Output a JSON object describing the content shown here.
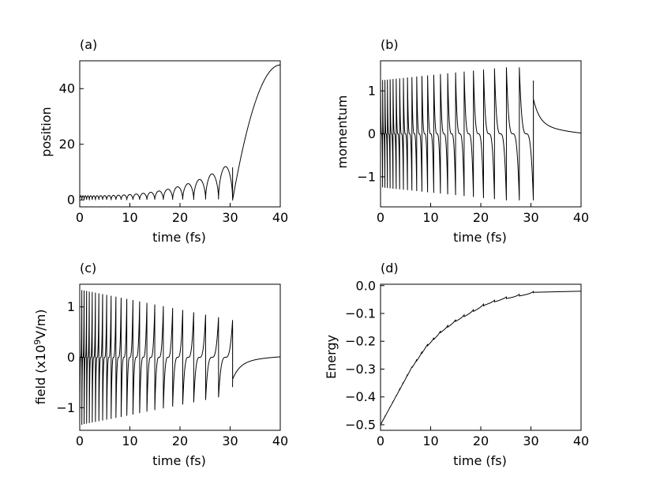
{
  "figure": {
    "background": "#ffffff",
    "line_color": "#000000"
  },
  "chart_data": [
    {
      "id": "a",
      "type": "line",
      "panel_label": "(a)",
      "xlabel": "time (fs)",
      "ylabel": "position",
      "xlim": [
        0,
        40
      ],
      "ylim": [
        -2.5,
        50
      ],
      "xticks": [
        0,
        10,
        20,
        30,
        40
      ],
      "xtick_labels": [
        "0",
        "10",
        "20",
        "30",
        "40"
      ],
      "yticks": [
        0,
        20,
        40
      ],
      "ytick_labels": [
        "0",
        "20",
        "40"
      ],
      "series": [
        {
          "name": "position",
          "model": "bouncing-arches",
          "turning_times_fs": [
            21.0,
            24.4,
            30.5
          ],
          "final_value": 48.5
        }
      ]
    },
    {
      "id": "b",
      "type": "line",
      "panel_label": "(b)",
      "xlabel": "time (fs)",
      "ylabel": "momentum",
      "xlim": [
        0,
        40
      ],
      "ylim": [
        -1.7,
        1.7
      ],
      "xticks": [
        0,
        10,
        20,
        30,
        40
      ],
      "xtick_labels": [
        "0",
        "10",
        "20",
        "30",
        "40"
      ],
      "yticks": [
        -1,
        0,
        1
      ],
      "ytick_labels": [
        "−1",
        "0",
        "1"
      ],
      "series": [
        {
          "name": "momentum",
          "model": "sawtooth-oscillation",
          "initial_amplitude": 1.25,
          "peak_amplitude": 1.55,
          "final_value": 0.0
        }
      ]
    },
    {
      "id": "c",
      "type": "line",
      "panel_label": "(c)",
      "xlabel": "time (fs)",
      "ylabel": "field (x10",
      "ylabel_sup": "9",
      "ylabel_suffix": "V/m)",
      "xlim": [
        0,
        40
      ],
      "ylim": [
        -1.45,
        1.45
      ],
      "xticks": [
        0,
        10,
        20,
        30,
        40
      ],
      "xtick_labels": [
        "0",
        "10",
        "20",
        "30",
        "40"
      ],
      "yticks": [
        -1,
        0,
        1
      ],
      "ytick_labels": [
        "−1",
        "0",
        "1"
      ],
      "series": [
        {
          "name": "field",
          "model": "decaying-oscillation",
          "initial_amplitude": 1.35,
          "final_amplitude": 0.72,
          "final_value": 0.0
        }
      ]
    },
    {
      "id": "d",
      "type": "line",
      "panel_label": "(d)",
      "xlabel": "time (fs)",
      "ylabel": "Energy",
      "xlim": [
        0,
        40
      ],
      "ylim": [
        -0.52,
        0.005
      ],
      "xticks": [
        0,
        10,
        20,
        30,
        40
      ],
      "xtick_labels": [
        "0",
        "10",
        "20",
        "30",
        "40"
      ],
      "yticks": [
        0.0,
        -0.1,
        -0.2,
        -0.3,
        -0.4,
        -0.5
      ],
      "ytick_labels": [
        "0.0",
        "−0.1",
        "−0.2",
        "−0.3",
        "−0.4",
        "−0.5"
      ],
      "series": [
        {
          "name": "energy",
          "model": "stepped-rise",
          "x": [
            0,
            21.0,
            24.4,
            30.5,
            40
          ],
          "y": [
            -0.5,
            -0.06,
            -0.045,
            -0.023,
            -0.02
          ]
        }
      ]
    }
  ]
}
